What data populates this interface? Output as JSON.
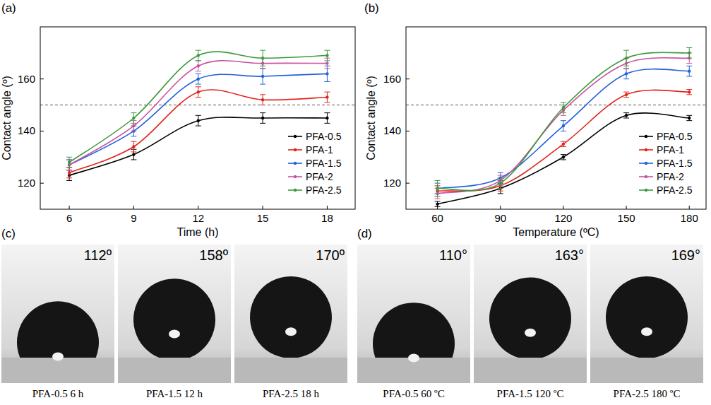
{
  "chart_data": [
    {
      "type": "line",
      "title": "(a)",
      "x_label": "Time (h)",
      "y_label": "Contact angle (º)",
      "x": [
        6,
        9,
        12,
        15,
        18
      ],
      "xlim": [
        4.65,
        19.3
      ],
      "xticks": [
        6,
        9,
        12,
        15,
        18
      ],
      "ylim": [
        110,
        180
      ],
      "yticks": [
        120,
        140,
        160
      ],
      "reference_line": {
        "y": 150,
        "line_style": "dashed"
      },
      "legend": "lower right",
      "series": [
        {
          "name": "PFA-0.5",
          "color": "#000000",
          "marker": "circle",
          "values": [
            123,
            131,
            144,
            145,
            145
          ],
          "errors": [
            2,
            2,
            2,
            2,
            2
          ]
        },
        {
          "name": "PFA-1",
          "color": "#e3241c",
          "marker": "circle",
          "values": [
            124,
            134,
            155,
            152,
            153
          ],
          "errors": [
            2,
            2,
            2,
            2,
            2
          ]
        },
        {
          "name": "PFA-1.5",
          "color": "#2262d8",
          "marker": "circle",
          "values": [
            127,
            140,
            160,
            161,
            162
          ],
          "errors": [
            2,
            2,
            2,
            3,
            3
          ]
        },
        {
          "name": "PFA-2",
          "color": "#c9519e",
          "marker": "circle",
          "values": [
            127,
            142,
            165,
            166,
            166
          ],
          "errors": [
            2,
            2,
            2,
            2,
            2
          ]
        },
        {
          "name": "PFA-2.5",
          "color": "#3c9b3c",
          "marker": "circle",
          "values": [
            128,
            145,
            169,
            168,
            169
          ],
          "errors": [
            2,
            2,
            2,
            3,
            2
          ]
        }
      ]
    },
    {
      "type": "line",
      "title": "(b)",
      "x_label": "Temperature (ºC)",
      "y_label": "Contact angle (º)",
      "x": [
        60,
        90,
        120,
        150,
        180
      ],
      "xlim": [
        45,
        188
      ],
      "xticks": [
        60,
        90,
        120,
        150,
        180
      ],
      "ylim": [
        110,
        180
      ],
      "yticks": [
        120,
        140,
        160
      ],
      "reference_line": {
        "y": 150,
        "line_style": "dashed"
      },
      "legend": "lower right",
      "series": [
        {
          "name": "PFA-0.5",
          "color": "#000000",
          "marker": "circle",
          "values": [
            112,
            118,
            130,
            146,
            145
          ],
          "errors": [
            1,
            2,
            1,
            1,
            1
          ]
        },
        {
          "name": "PFA-1",
          "color": "#e3241c",
          "marker": "circle",
          "values": [
            117,
            119,
            135,
            154,
            155
          ],
          "errors": [
            2,
            2,
            1,
            1,
            1
          ]
        },
        {
          "name": "PFA-1.5",
          "color": "#2262d8",
          "marker": "circle",
          "values": [
            118,
            122,
            142,
            162,
            163
          ],
          "errors": [
            2,
            2,
            2,
            2,
            2
          ]
        },
        {
          "name": "PFA-2",
          "color": "#c9519e",
          "marker": "circle",
          "values": [
            116,
            121,
            148,
            166,
            168
          ],
          "errors": [
            2,
            2,
            2,
            2,
            2
          ]
        },
        {
          "name": "PFA-2.5",
          "color": "#3c9b3c",
          "marker": "circle",
          "values": [
            118,
            120,
            149,
            168,
            170
          ],
          "errors": [
            3,
            2,
            2,
            3,
            2
          ]
        }
      ]
    }
  ],
  "images": [
    {
      "panel": "(c)",
      "items": [
        {
          "caption": "PFA-0.5 6 h",
          "contact_angle": 112,
          "label": "112º"
        },
        {
          "caption": "PFA-1.5 12 h",
          "contact_angle": 158,
          "label": "158º"
        },
        {
          "caption": "PFA-2.5 18 h",
          "contact_angle": 170,
          "label": "170º"
        }
      ]
    },
    {
      "panel": "(d)",
      "items": [
        {
          "caption": "PFA-0.5 60 ºC",
          "contact_angle": 110,
          "label": "110°"
        },
        {
          "caption": "PFA-1.5 120 ºC",
          "contact_angle": 163,
          "label": "163°"
        },
        {
          "caption": "PFA-2.5 180 ºC",
          "contact_angle": 169,
          "label": "169°"
        }
      ]
    }
  ]
}
